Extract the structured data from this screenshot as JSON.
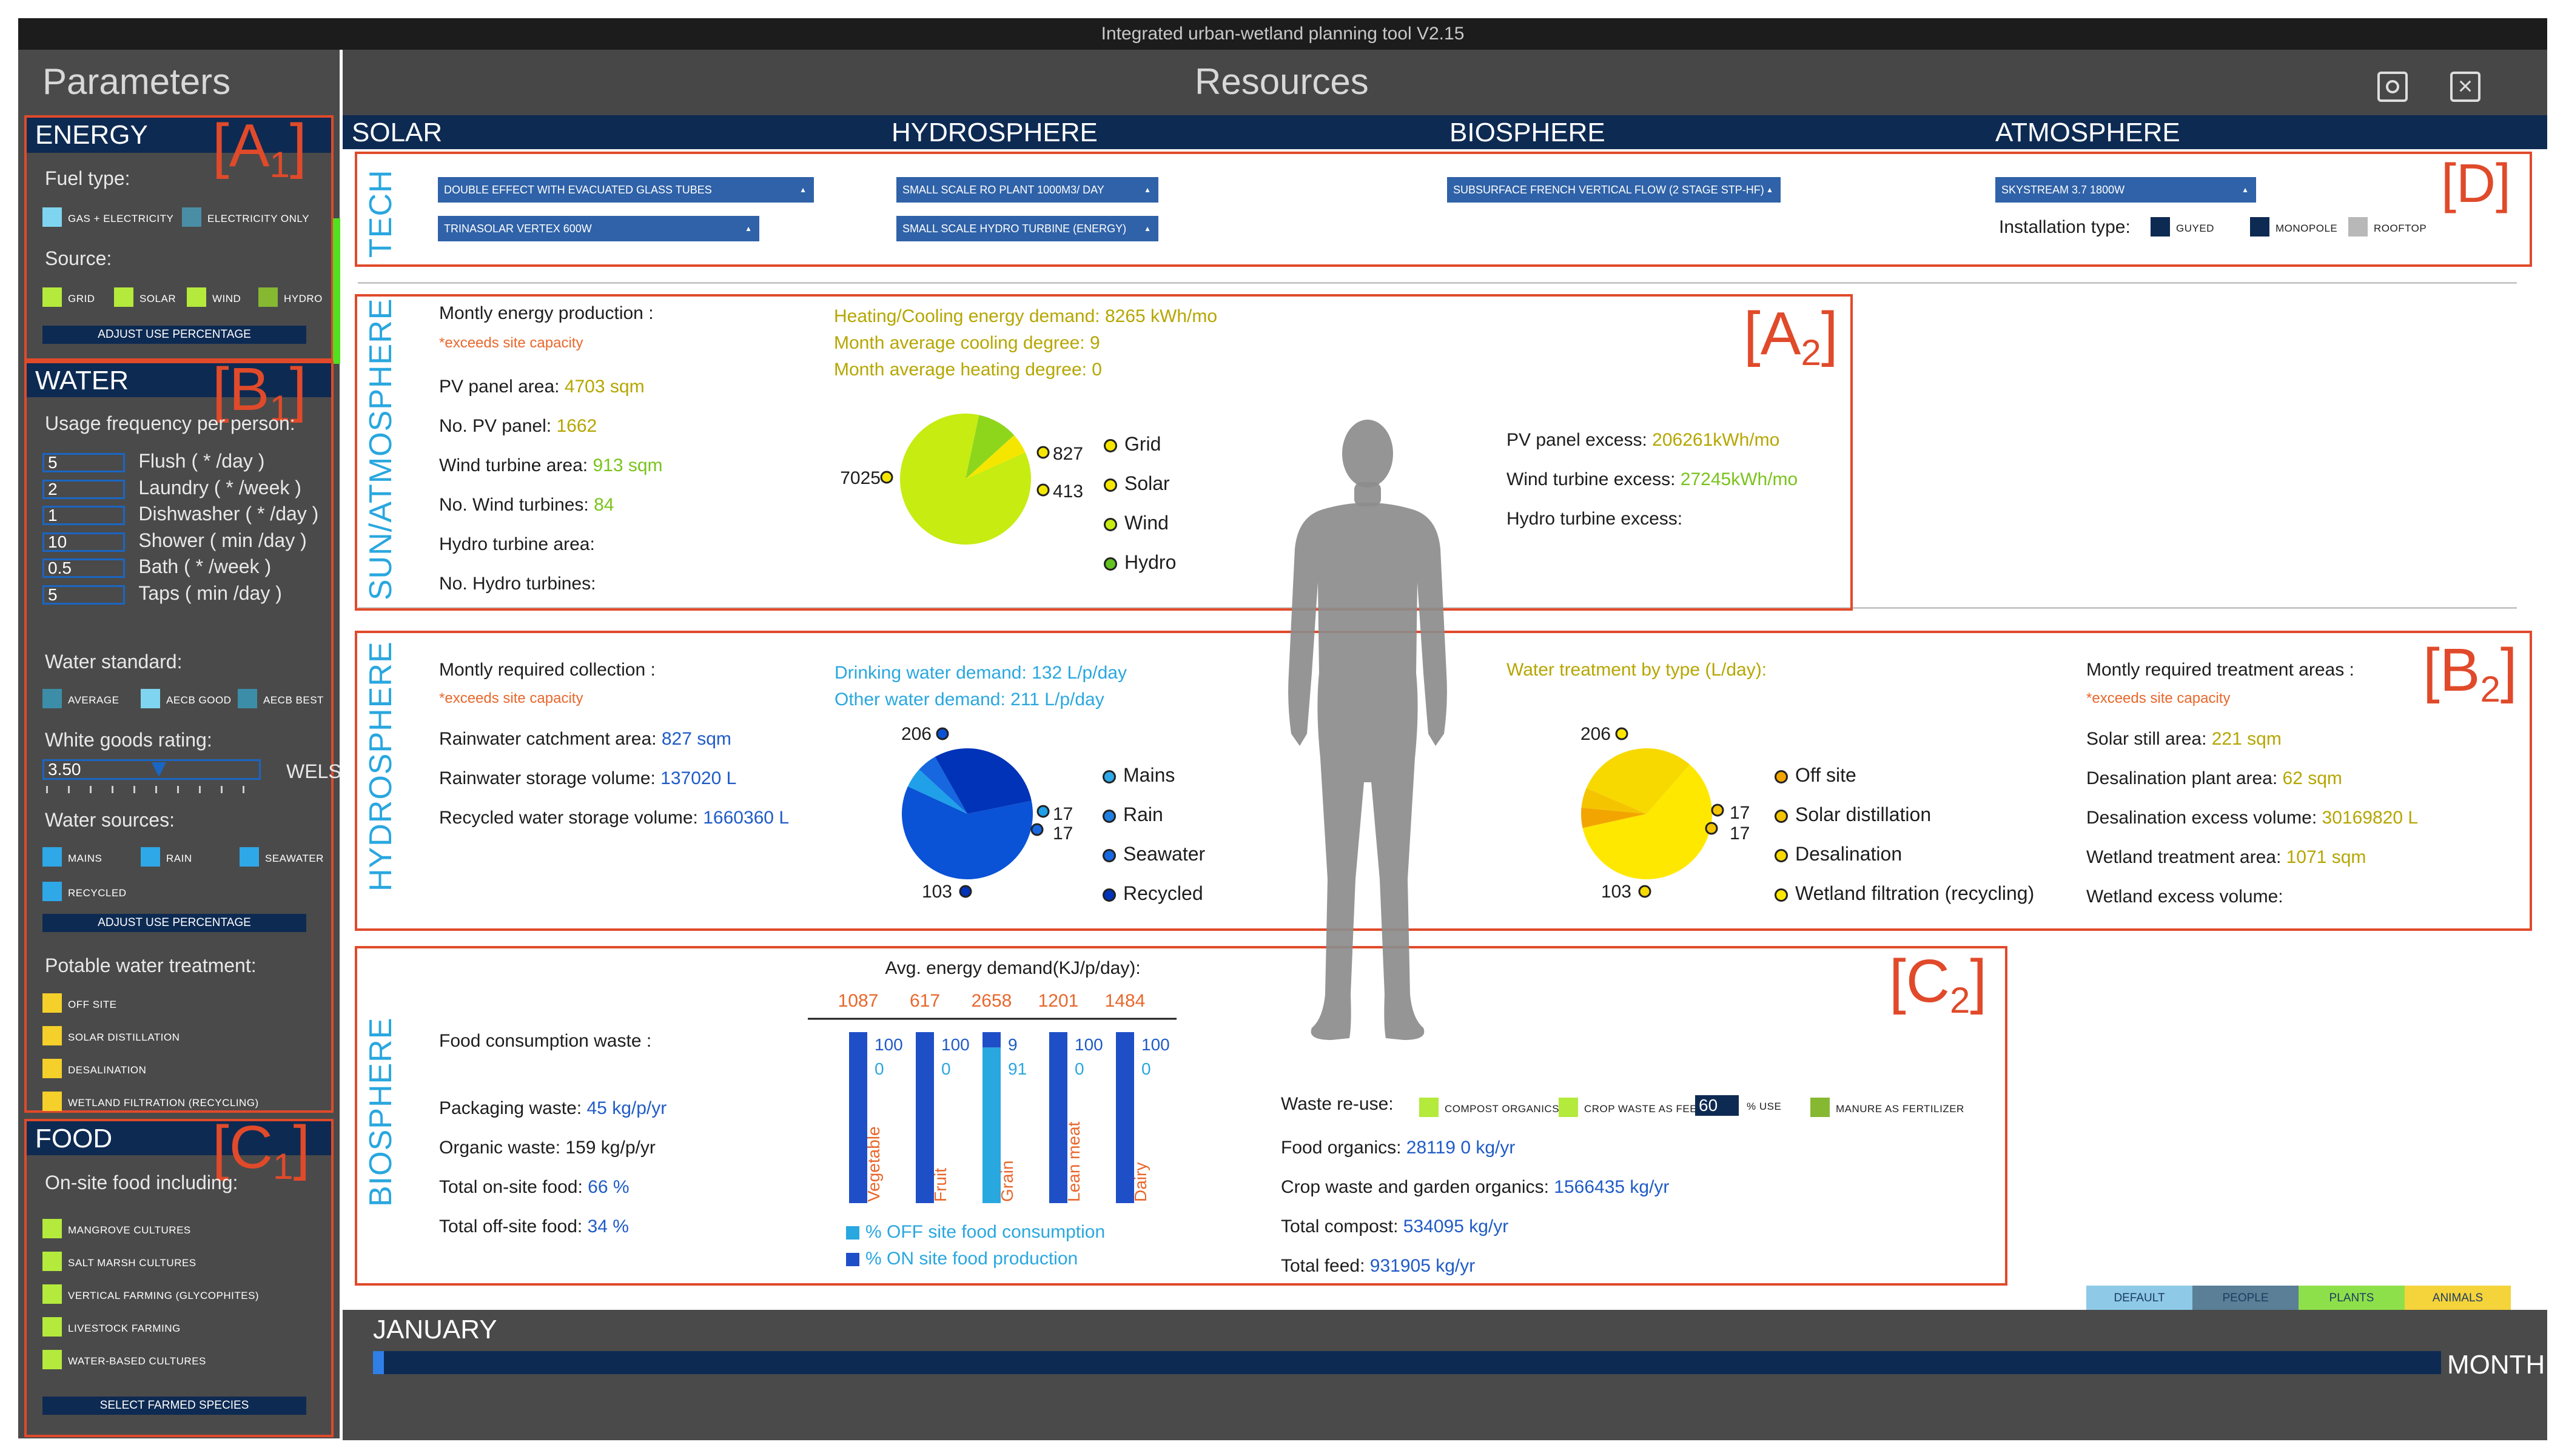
{
  "window": {
    "title": "Integrated urban-wetland planning tool V2.15"
  },
  "header": {
    "parameters": "Parameters",
    "resources": "Resources"
  },
  "tabs": [
    {
      "label": "SOLAR"
    },
    {
      "label": "HYDROSPHERE"
    },
    {
      "label": "BIOSPHERE"
    },
    {
      "label": "ATMOSPHERE"
    }
  ],
  "sidebar": {
    "energy": {
      "title": "ENERGY",
      "tag_letter": "[A",
      "tag_sub": "1",
      "tag_close": "]",
      "fuel_label": "Fuel type:",
      "fuel": [
        "GAS + ELECTRICITY",
        "ELECTRICITY ONLY"
      ],
      "source_label": "Source:",
      "sources": [
        "GRID",
        "SOLAR",
        "WIND",
        "HYDRO"
      ],
      "adjust": "ADJUST USE PERCENTAGE"
    },
    "water": {
      "title": "WATER",
      "tag_letter": "[B",
      "tag_sub": "1",
      "tag_close": "]",
      "usage_label": "Usage frequency per person:",
      "usage": [
        {
          "value": "5",
          "label": "Flush ( * /day )"
        },
        {
          "value": "2",
          "label": "Laundry ( * /week )"
        },
        {
          "value": "1",
          "label": "Dishwasher ( * /day )"
        },
        {
          "value": "10",
          "label": "Shower ( min /day )"
        },
        {
          "value": "0.5",
          "label": "Bath ( * /week )"
        },
        {
          "value": "5",
          "label": "Taps ( min /day )"
        }
      ],
      "standard_label": "Water standard:",
      "standards": [
        "AVERAGE",
        "AECB GOOD",
        "AECB BEST"
      ],
      "goods_label": "White goods rating:",
      "goods_value": "3.50",
      "goods_unit": "WELS",
      "goods_level": 0.5,
      "sources_label": "Water sources:",
      "sources": [
        "MAINS",
        "RAIN",
        "SEAWATER",
        "RECYCLED"
      ],
      "adjust": "ADJUST USE PERCENTAGE",
      "treatment_label": "Potable water treatment:",
      "treatments": [
        "OFF SITE",
        "SOLAR DISTILLATION",
        "DESALINATION",
        "WETLAND FILTRATION (RECYCLING)"
      ]
    },
    "food": {
      "title": "FOOD",
      "tag_letter": "[C",
      "tag_sub": "1",
      "tag_close": "]",
      "onsite_label": "On-site food including:",
      "items": [
        "MANGROVE CULTURES",
        "SALT MARSH CULTURES",
        "VERTICAL FARMING (GLYCOPHITES)",
        "LIVESTOCK FARMING",
        "WATER-BASED CULTURES"
      ],
      "select": "SELECT FARMED SPECIES"
    }
  },
  "tech": {
    "label": "TECH",
    "tag": "[D]",
    "solar": [
      "DOUBLE EFFECT WITH EVACUATED GLASS TUBES",
      "TRINASOLAR VERTEX 600W"
    ],
    "hydro": [
      "SMALL SCALE RO PLANT 1000M3/ DAY",
      "SMALL SCALE HYDRO TURBINE (ENERGY)"
    ],
    "bio": "SUBSURFACE FRENCH VERTICAL FLOW (2 STAGE STP-HF)",
    "atmo": "SKYSTREAM 3.7 1800W",
    "install_label": "Installation type:",
    "install": [
      "GUYED",
      "MONOPOLE",
      "ROOFTOP"
    ]
  },
  "sun": {
    "label": "SUN/ATMOSPHERE",
    "tag_letter": "[A",
    "tag_sub": "2",
    "tag_close": "]",
    "monthly": "Montly energy production :",
    "exceeds": "*exceeds site capacity",
    "rows": [
      {
        "k": "PV panel area: ",
        "v": "4703 sqm"
      },
      {
        "k": "No. PV panel: ",
        "v": "1662"
      },
      {
        "k": "Wind turbine area: ",
        "v": "913 sqm"
      },
      {
        "k": "No. Wind turbines: ",
        "v": "84"
      },
      {
        "k": "Hydro turbine area:",
        "v": ""
      },
      {
        "k": "No. Hydro turbines:",
        "v": ""
      }
    ],
    "heating": "Heating/Cooling energy demand: 8265 kWh/mo",
    "cooling": "Month average cooling degree: 9",
    "heatdeg": "Month average heating degree: 0",
    "pie_labels": [
      "7025",
      "827",
      "413"
    ],
    "legend": [
      "Grid",
      "Solar",
      "Wind",
      "Hydro"
    ],
    "excess": [
      {
        "k": "PV panel excess: ",
        "v": "206261kWh/mo"
      },
      {
        "k": "Wind turbine excess: ",
        "v": "27245kWh/mo"
      },
      {
        "k": "Hydro turbine excess:",
        "v": ""
      }
    ]
  },
  "hydro": {
    "label": "HYDROSPHERE",
    "tag_letter": "[B",
    "tag_sub": "2",
    "tag_close": "]",
    "monthly": "Montly required collection :",
    "exceeds": "*exceeds site capacity",
    "rows": [
      {
        "k": "Rainwater catchment area: ",
        "v": "827 sqm"
      },
      {
        "k": "Rainwater storage volume: ",
        "v": "137020 L"
      },
      {
        "k": "Recycled water storage volume: ",
        "v": "1660360 L"
      }
    ],
    "drinking": "Drinking water demand: 132 L/p/day",
    "other": "Other water demand: 211 L/p/day",
    "pie1_labels": [
      "206",
      "17",
      "17",
      "103"
    ],
    "legend1": [
      "Mains",
      "Rain",
      "Seawater",
      "Recycled"
    ],
    "treat_title": "Water treatment by type (L/day):",
    "pie2_labels": [
      "206",
      "17",
      "17",
      "103"
    ],
    "legend2": [
      "Off site",
      "Solar distillation",
      "Desalination",
      "Wetland filtration (recycling)"
    ],
    "areas_title": "Montly required treatment areas :",
    "exceeds2": "*exceeds site capacity",
    "areas": [
      {
        "k": "Solar still area: ",
        "v": "221 sqm"
      },
      {
        "k": "Desalination plant area: ",
        "v": "62 sqm"
      },
      {
        "k": "Desalination excess volume: ",
        "v": "30169820 L"
      },
      {
        "k": "Wetland treatment area: ",
        "v": "1071 sqm"
      },
      {
        "k": "Wetland excess volume:",
        "v": ""
      }
    ]
  },
  "bio": {
    "label": "BIOSPHERE",
    "tag_letter": "[C",
    "tag_sub": "2",
    "tag_close": "]",
    "waste_title": "Food consumption waste :",
    "rows": [
      {
        "k": "Packaging waste: ",
        "v": "45 kg/p/yr"
      },
      {
        "k": "Organic waste: ",
        "v": "159 kg/p/yr"
      },
      {
        "k": "Total on-site food: ",
        "v": "66 %"
      },
      {
        "k": "Total off-site food: ",
        "v": "34 %"
      }
    ],
    "reuse_label": "Waste re-use:",
    "reuse": [
      "COMPOST ORGANICS",
      "CROP WASTE AS FEED",
      "MANURE AS FERTILIZER"
    ],
    "reuse_value": "60",
    "reuse_unit": "% USE",
    "reuse_rows": [
      {
        "k": "Food organics: ",
        "v": "28119 0 kg/yr"
      },
      {
        "k": "Crop waste and garden organics: ",
        "v": "1566435 kg/yr"
      },
      {
        "k": "Total compost: ",
        "v": "534095 kg/yr"
      },
      {
        "k": "Total feed: ",
        "v": "931905 kg/yr"
      }
    ],
    "legend": [
      "% OFF site food consumption",
      "% ON site food production"
    ]
  },
  "chart_data": [
    {
      "type": "pie",
      "title": "Montly energy production",
      "labels": [
        "Grid",
        "Solar",
        "Wind",
        "Hydro"
      ],
      "values": [
        7025,
        827,
        413,
        0
      ],
      "colors": [
        "#c6ec12",
        "#8ed61c",
        "#f5e600",
        "#62c221"
      ]
    },
    {
      "type": "pie",
      "title": "Water sources",
      "labels": [
        "Mains",
        "Rain",
        "Seawater",
        "Recycled"
      ],
      "values": [
        206,
        17,
        17,
        103
      ],
      "colors": [
        "#0a52d6",
        "#1fa0e8",
        "#1667e0",
        "#0033b8"
      ]
    },
    {
      "type": "pie",
      "title": "Water treatment by type (L/day)",
      "labels": [
        "Off site",
        "Solar distillation",
        "Desalination",
        "Wetland filtration (recycling)"
      ],
      "values": [
        206,
        17,
        17,
        103
      ],
      "colors": [
        "#ffe800",
        "#f2a500",
        "#f5c400",
        "#f7d900"
      ]
    },
    {
      "type": "bar",
      "title": "Avg. energy demand(KJ/p/day):",
      "categories": [
        "Vegetable",
        "Fruit",
        "Grain",
        "Lean meat",
        "Dairy"
      ],
      "demand": [
        1087,
        617,
        2658,
        1201,
        1484
      ],
      "series": [
        {
          "name": "% OFF site food consumption",
          "values": [
            0,
            0,
            91,
            0,
            0
          ]
        },
        {
          "name": "% ON site food production",
          "values": [
            100,
            100,
            9,
            100,
            100
          ]
        }
      ],
      "ylim": [
        0,
        100
      ]
    }
  ],
  "buttons": [
    "DEFAULT",
    "PEOPLE",
    "PLANTS",
    "ANIMALS"
  ],
  "button_colors": [
    "#8ec9e8",
    "#5a7f96",
    "#8ee04a",
    "#f5d33a"
  ],
  "timeline": {
    "month": "JANUARY",
    "unit": "MONTH",
    "progress": 0.005
  },
  "colors": {
    "accent": "#29a7df",
    "brand": "#e04a2a",
    "dark": "#474747"
  }
}
